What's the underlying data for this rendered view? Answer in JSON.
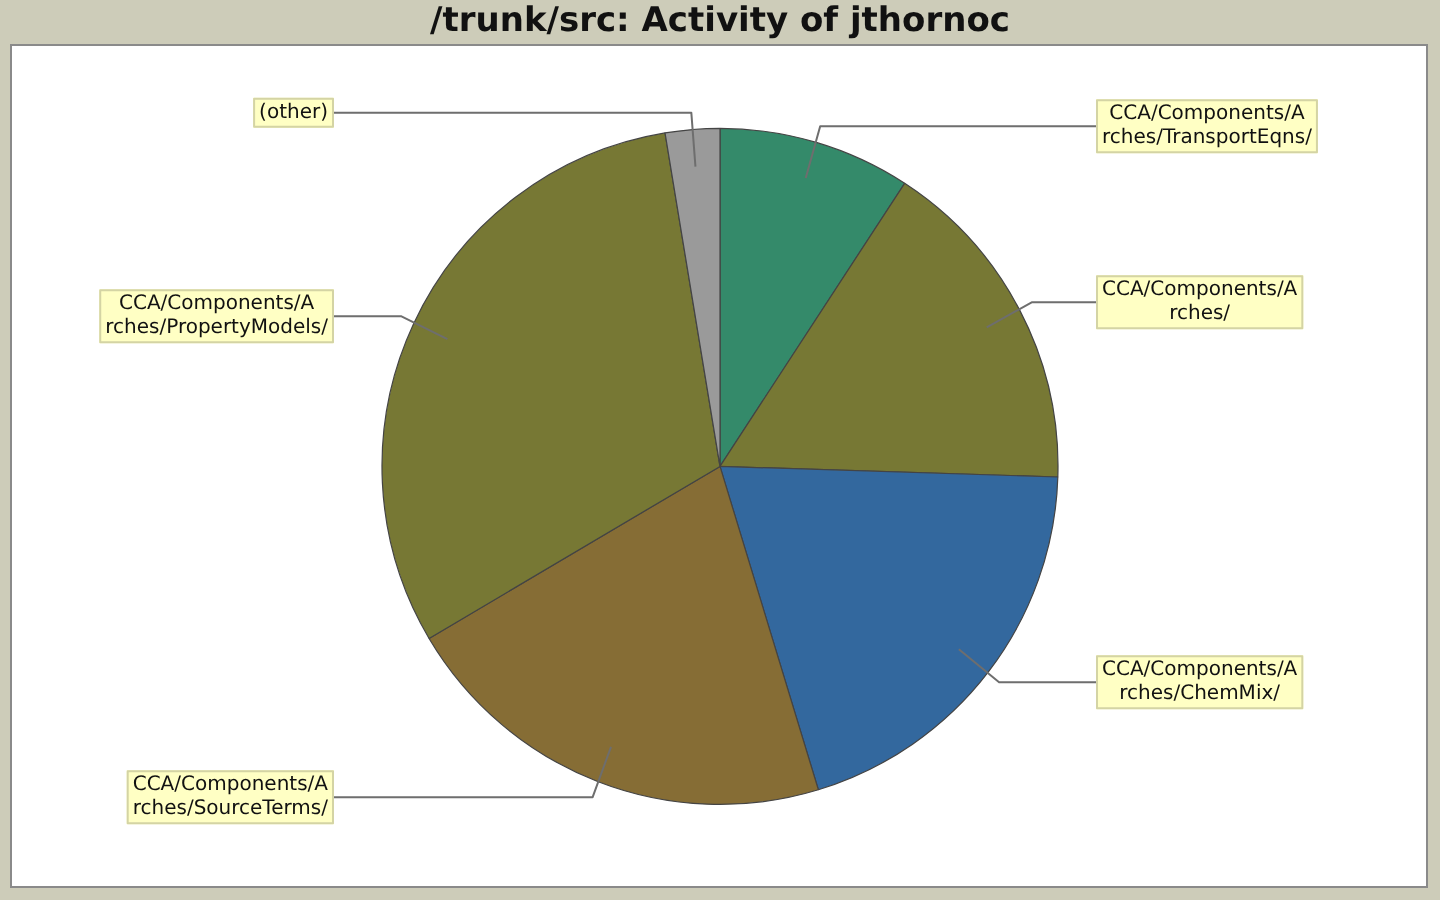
{
  "chart_data": {
    "type": "pie",
    "title": "/trunk/src: Activity of jthornoc",
    "categories": [
      "CCA/Components/Arches/TransportEqns/",
      "CCA/Components/Arches/",
      "CCA/Components/Arches/ChemMix/",
      "CCA/Components/Arches/SourceTerms/",
      "CCA/Components/Arches/PropertyModels/",
      "(other)"
    ],
    "values": [
      9.2,
      16.3,
      19.8,
      21.2,
      30.9,
      2.6
    ],
    "colors": [
      "#348a6a",
      "#777834",
      "#33689e",
      "#866d35",
      "#777834",
      "#9a9a9a"
    ]
  }
}
